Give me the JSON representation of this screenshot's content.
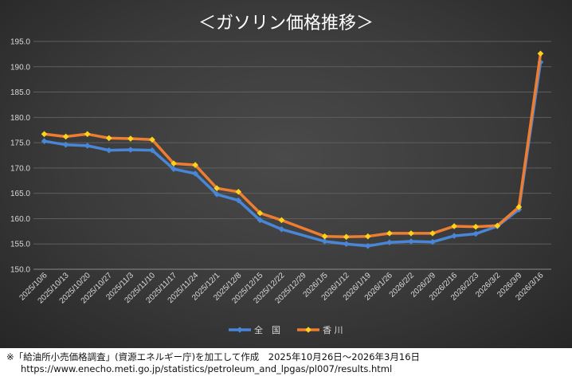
{
  "footnote": {
    "line1": "※「給油所小売価格調査」(資源エネルギー庁)を加工して作成　2025年10月26日～2026年3月16日",
    "line2": "https://www.enecho.meti.go.jp/statistics/petroleum_and_lpgas/pl007/results.html"
  },
  "chart_data": {
    "type": "line",
    "title": "＜ガソリン価格推移＞",
    "xlabel": "",
    "ylabel": "",
    "ylim": [
      150,
      195
    ],
    "yticks": [
      "150.0",
      "155.0",
      "160.0",
      "165.0",
      "170.0",
      "175.0",
      "180.0",
      "185.0",
      "190.0",
      "195.0"
    ],
    "categories": [
      "2025/10/6",
      "2025/10/13",
      "2025/10/20",
      "2025/10/27",
      "2025/11/3",
      "2025/11/10",
      "2025/11/17",
      "2025/11/24",
      "2025/12/1",
      "2025/12/8",
      "2025/12/15",
      "2025/12/22",
      "2025/12/29",
      "2026/1/5",
      "2026/1/12",
      "2026/1/19",
      "2026/1/26",
      "2026/2/2",
      "2026/2/9",
      "2026/2/16",
      "2026/2/23",
      "2026/3/2",
      "2026/3/9",
      "2026/3/16"
    ],
    "grid": true,
    "legend_position": "bottom",
    "series": [
      {
        "name": "全　国",
        "color": "#4a86d6",
        "marker": "diamond",
        "values": [
          175.3,
          174.6,
          174.4,
          173.5,
          173.6,
          173.5,
          169.8,
          168.9,
          164.8,
          163.6,
          159.7,
          157.9,
          null,
          155.5,
          155.0,
          154.6,
          155.3,
          155.5,
          155.4,
          156.6,
          157.0,
          158.5,
          161.8,
          190.9
        ]
      },
      {
        "name": "香 川",
        "color": "#ed7d31",
        "marker": "diamond",
        "values": [
          176.7,
          176.2,
          176.7,
          175.9,
          175.8,
          175.6,
          170.9,
          170.6,
          166.0,
          165.3,
          161.1,
          159.7,
          null,
          156.5,
          156.4,
          156.5,
          157.1,
          157.1,
          157.1,
          158.5,
          158.4,
          158.6,
          162.3,
          192.6
        ]
      }
    ]
  }
}
